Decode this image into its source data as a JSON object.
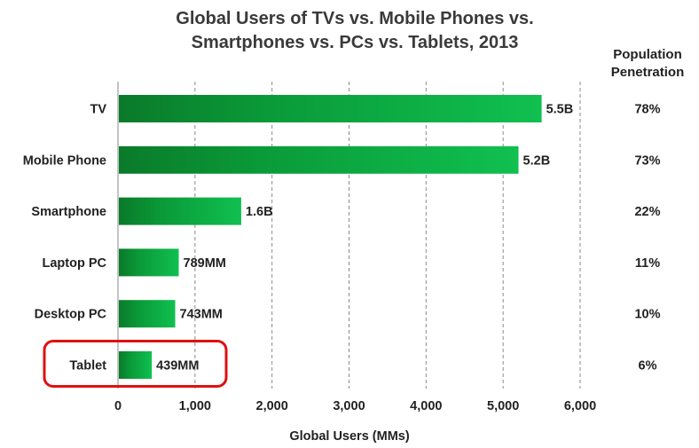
{
  "chart_data": {
    "type": "bar",
    "orientation": "horizontal",
    "title_lines": [
      "Global Users of TVs vs. Mobile Phones vs.",
      "Smartphones vs. PCs vs. Tablets, 2013"
    ],
    "xlabel": "Global Users (MMs)",
    "ylabel": "",
    "xlim": [
      0,
      6000
    ],
    "x_ticks": [
      "0",
      "1,000",
      "2,000",
      "3,000",
      "4,000",
      "5,000",
      "6,000"
    ],
    "grid": "vertical dashed",
    "categories": [
      "TV",
      "Mobile Phone",
      "Smartphone",
      "Laptop PC",
      "Desktop PC",
      "Tablet"
    ],
    "values": [
      5500,
      5200,
      1600,
      789,
      743,
      439
    ],
    "data_labels": [
      "5.5B",
      "5.2B",
      "1.6B",
      "789MM",
      "743MM",
      "439MM"
    ],
    "penetration_header": [
      "Population",
      "Penetration"
    ],
    "penetration": [
      "78%",
      "73%",
      "22%",
      "11%",
      "10%",
      "6%"
    ],
    "highlighted_category": "Tablet",
    "colors": {
      "bar_dark": "#0a7a2a",
      "bar_light": "#10c050",
      "highlight": "#e01010"
    }
  }
}
